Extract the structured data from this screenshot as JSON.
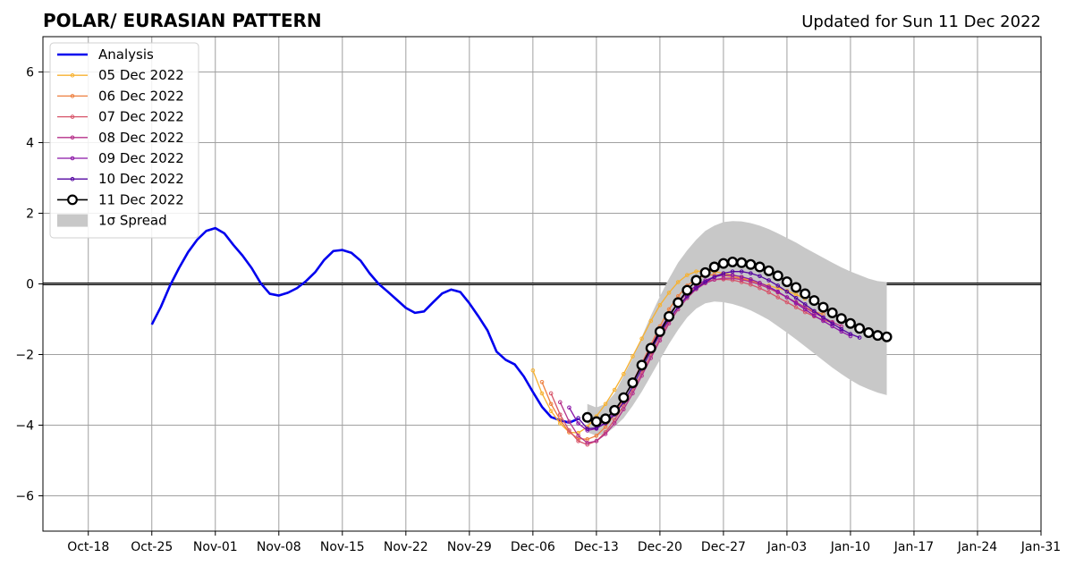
{
  "chart_data": {
    "type": "line",
    "title": "POLAR/ EURASIAN  PATTERN",
    "subtitle": "Updated for Sun 11 Dec 2022",
    "xlabel": "",
    "ylabel": "",
    "x_range": [
      "2022-10-13",
      "2023-01-31"
    ],
    "ylim": [
      -7,
      7
    ],
    "x_ticks": [
      "2022-10-18",
      "2022-10-25",
      "2022-11-01",
      "2022-11-08",
      "2022-11-15",
      "2022-11-22",
      "2022-11-29",
      "2022-12-06",
      "2022-12-13",
      "2022-12-20",
      "2022-12-27",
      "2023-01-03",
      "2023-01-10",
      "2023-01-17",
      "2023-01-24",
      "2023-01-31"
    ],
    "x_tick_labels": [
      "Oct-18",
      "Oct-25",
      "Nov-01",
      "Nov-08",
      "Nov-15",
      "Nov-22",
      "Nov-29",
      "Dec-06",
      "Dec-13",
      "Dec-20",
      "Dec-27",
      "Jan-03",
      "Jan-10",
      "Jan-17",
      "Jan-24",
      "Jan-31"
    ],
    "y_ticks": [
      -6,
      -4,
      -2,
      0,
      2,
      4,
      6
    ],
    "y_tick_labels": [
      "−6",
      "−4",
      "−2",
      "0",
      "2",
      "4",
      "6"
    ],
    "grid": true,
    "zero_line": true,
    "legend_position": "top-left",
    "analysis": {
      "name": "Analysis",
      "color": "#0000ee",
      "start": "2022-10-25",
      "values": [
        -1.15,
        -0.65,
        -0.05,
        0.45,
        0.9,
        1.25,
        1.5,
        1.58,
        1.43,
        1.1,
        0.8,
        0.45,
        0.02,
        -0.28,
        -0.33,
        -0.25,
        -0.12,
        0.08,
        0.33,
        0.68,
        0.93,
        0.96,
        0.88,
        0.66,
        0.3,
        0.0,
        -0.22,
        -0.45,
        -0.68,
        -0.82,
        -0.78,
        -0.52,
        -0.27,
        -0.16,
        -0.23,
        -0.55,
        -0.92,
        -1.32,
        -1.92,
        -2.15,
        -2.28,
        -2.62,
        -3.06,
        -3.48,
        -3.77,
        -3.86,
        -3.93,
        -3.82
      ]
    },
    "forecasts": [
      {
        "name": "05 Dec 2022",
        "color": "#f7b12f",
        "start": "2022-12-06",
        "values": [
          -2.45,
          -3.1,
          -3.6,
          -3.95,
          -4.2,
          -4.22,
          -4.05,
          -3.75,
          -3.4,
          -3.0,
          -2.55,
          -2.05,
          -1.55,
          -1.05,
          -0.6,
          -0.25,
          0.05,
          0.25,
          0.35,
          0.38,
          0.35,
          0.3,
          0.25,
          0.18,
          0.1,
          0.02,
          -0.05,
          -0.12,
          -0.2,
          -0.3,
          -0.42
        ]
      },
      {
        "name": "06 Dec 2022",
        "color": "#ee7f3e",
        "start": "2022-12-07",
        "values": [
          -2.78,
          -3.4,
          -3.85,
          -4.2,
          -4.38,
          -4.4,
          -4.3,
          -4.05,
          -3.7,
          -3.25,
          -2.78,
          -2.25,
          -1.72,
          -1.2,
          -0.72,
          -0.35,
          -0.05,
          0.14,
          0.24,
          0.26,
          0.24,
          0.2,
          0.15,
          0.08,
          -0.02,
          -0.12,
          -0.25,
          -0.38,
          -0.52,
          -0.66,
          -0.78,
          -0.86
        ]
      },
      {
        "name": "07 Dec 2022",
        "color": "#d75469",
        "start": "2022-12-08",
        "values": [
          -3.1,
          -3.7,
          -4.15,
          -4.45,
          -4.55,
          -4.45,
          -4.2,
          -3.85,
          -3.45,
          -3.0,
          -2.52,
          -2.02,
          -1.52,
          -1.05,
          -0.65,
          -0.32,
          -0.08,
          0.06,
          0.12,
          0.13,
          0.11,
          0.05,
          -0.02,
          -0.12,
          -0.24,
          -0.38,
          -0.52,
          -0.66,
          -0.8,
          -0.92,
          -1.02,
          -1.1
        ]
      },
      {
        "name": "08 Dec 2022",
        "color": "#b6318a",
        "start": "2022-12-09",
        "values": [
          -3.35,
          -3.9,
          -4.3,
          -4.5,
          -4.45,
          -4.25,
          -3.95,
          -3.55,
          -3.1,
          -2.6,
          -2.1,
          -1.6,
          -1.12,
          -0.72,
          -0.4,
          -0.15,
          0.02,
          0.12,
          0.16,
          0.16,
          0.12,
          0.06,
          -0.02,
          -0.12,
          -0.24,
          -0.38,
          -0.52,
          -0.67,
          -0.82,
          -0.95,
          -1.08,
          -1.2
        ]
      },
      {
        "name": "09 Dec 2022",
        "color": "#8b15a6",
        "start": "2022-12-10",
        "values": [
          -3.5,
          -3.95,
          -4.15,
          -4.1,
          -3.92,
          -3.62,
          -3.22,
          -2.78,
          -2.28,
          -1.78,
          -1.3,
          -0.88,
          -0.53,
          -0.25,
          -0.05,
          0.1,
          0.2,
          0.25,
          0.25,
          0.2,
          0.13,
          0.03,
          -0.08,
          -0.22,
          -0.38,
          -0.55,
          -0.72,
          -0.9,
          -1.05,
          -1.2,
          -1.35,
          -1.48
        ]
      },
      {
        "name": "10 Dec 2022",
        "color": "#5304a0",
        "start": "2022-12-11",
        "values": [
          -3.8,
          -4.1,
          -4.08,
          -3.95,
          -3.7,
          -3.35,
          -2.9,
          -2.4,
          -1.9,
          -1.42,
          -1.0,
          -0.65,
          -0.35,
          -0.12,
          0.05,
          0.2,
          0.3,
          0.35,
          0.35,
          0.3,
          0.22,
          0.1,
          -0.05,
          -0.22,
          -0.4,
          -0.58,
          -0.77,
          -0.95,
          -1.12,
          -1.28,
          -1.42,
          -1.52
        ]
      }
    ],
    "latest": {
      "name": "11 Dec 2022",
      "color": "#000000",
      "start": "2022-12-12",
      "values": [
        -3.78,
        -3.9,
        -3.82,
        -3.58,
        -3.22,
        -2.8,
        -2.3,
        -1.82,
        -1.35,
        -0.92,
        -0.53,
        -0.18,
        0.1,
        0.32,
        0.48,
        0.58,
        0.62,
        0.6,
        0.55,
        0.48,
        0.37,
        0.23,
        0.06,
        -0.1,
        -0.28,
        -0.47,
        -0.66,
        -0.82,
        -0.98,
        -1.12,
        -1.26,
        -1.38,
        -1.46,
        -1.5
      ]
    },
    "spread": {
      "name": "1σ Spread",
      "color": "#c8c8c8",
      "start": "2022-12-12",
      "upper": [
        -3.4,
        -3.5,
        -3.4,
        -3.1,
        -2.6,
        -2.1,
        -1.5,
        -0.9,
        -0.35,
        0.15,
        0.6,
        0.95,
        1.25,
        1.5,
        1.65,
        1.75,
        1.78,
        1.77,
        1.72,
        1.65,
        1.55,
        1.43,
        1.3,
        1.17,
        1.02,
        0.88,
        0.74,
        0.6,
        0.47,
        0.35,
        0.25,
        0.15,
        0.08,
        0.05
      ],
      "lower": [
        -4.2,
        -4.3,
        -4.25,
        -4.05,
        -3.8,
        -3.45,
        -3.05,
        -2.6,
        -2.15,
        -1.7,
        -1.3,
        -0.95,
        -0.7,
        -0.55,
        -0.5,
        -0.52,
        -0.57,
        -0.65,
        -0.75,
        -0.88,
        -1.02,
        -1.2,
        -1.38,
        -1.57,
        -1.77,
        -1.97,
        -2.17,
        -2.37,
        -2.55,
        -2.72,
        -2.87,
        -2.98,
        -3.08,
        -3.15
      ]
    },
    "legend_entries": [
      "Analysis",
      "05 Dec 2022",
      "06 Dec 2022",
      "07 Dec 2022",
      "08 Dec 2022",
      "09 Dec 2022",
      "10 Dec 2022",
      "11 Dec 2022",
      "1σ Spread"
    ]
  }
}
